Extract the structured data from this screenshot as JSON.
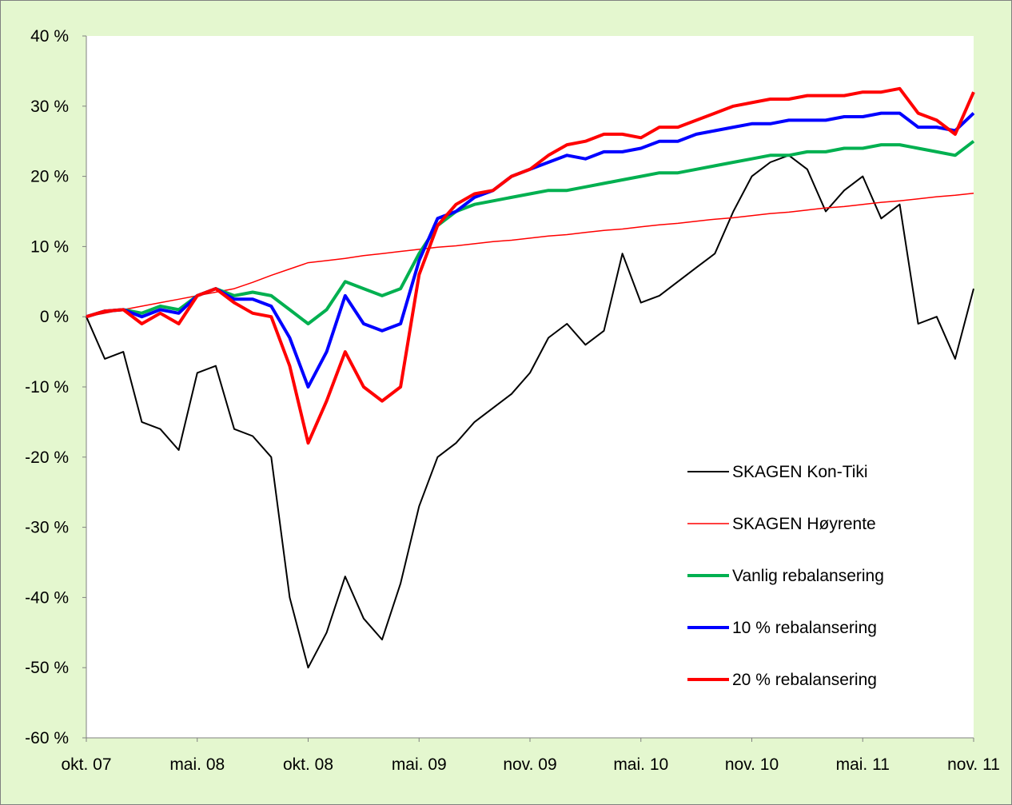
{
  "chart_data": {
    "type": "line",
    "categories": [
      "okt. 07",
      null,
      null,
      null,
      null,
      null,
      "mai. 08",
      null,
      null,
      null,
      null,
      null,
      "okt. 08",
      null,
      null,
      null,
      null,
      null,
      "mai. 09",
      null,
      null,
      null,
      null,
      null,
      "nov. 09",
      null,
      null,
      null,
      null,
      null,
      "mai. 10",
      null,
      null,
      null,
      null,
      null,
      "nov. 10",
      null,
      null,
      null,
      null,
      null,
      "mai. 11",
      null,
      null,
      null,
      null,
      null,
      "nov. 11"
    ],
    "ylim": [
      -60,
      40
    ],
    "yticks": [
      {
        "value": -60,
        "label": "-60 %"
      },
      {
        "value": -50,
        "label": "-50 %"
      },
      {
        "value": -40,
        "label": "-40 %"
      },
      {
        "value": -30,
        "label": "-30 %"
      },
      {
        "value": -20,
        "label": "-20 %"
      },
      {
        "value": -10,
        "label": "-10 %"
      },
      {
        "value": 0,
        "label": "0 %"
      },
      {
        "value": 10,
        "label": "10 %"
      },
      {
        "value": 20,
        "label": "20 %"
      },
      {
        "value": 30,
        "label": "30 %"
      },
      {
        "value": 40,
        "label": "40 %"
      }
    ],
    "grid": false,
    "legend": "lower right",
    "series": [
      {
        "name": "SKAGEN Kon-Tiki",
        "color": "#000000",
        "line_width": 2,
        "values": [
          0,
          -6,
          -5,
          -15,
          -16,
          -19,
          -8,
          -7,
          -16,
          -17,
          -20,
          -40,
          -50,
          -45,
          -37,
          -43,
          -46,
          -38,
          -27,
          -20,
          -18,
          -15,
          -13,
          -11,
          -8,
          -3,
          -1,
          -4,
          -2,
          9,
          2,
          3,
          5,
          7,
          9,
          15,
          20,
          22,
          23,
          21,
          15,
          18,
          20,
          14,
          16,
          -1,
          0,
          -6,
          4
        ]
      },
      {
        "name": "SKAGEN Høyrente",
        "color": "#ff0000",
        "line_width": 1.5,
        "values": [
          0,
          0.5,
          1,
          1.5,
          2,
          2.5,
          3,
          3.5,
          4,
          4.9,
          5.9,
          6.8,
          7.7,
          8.0,
          8.3,
          8.7,
          9.0,
          9.3,
          9.6,
          9.9,
          10.1,
          10.4,
          10.7,
          10.9,
          11.2,
          11.5,
          11.7,
          12.0,
          12.3,
          12.5,
          12.8,
          13.1,
          13.3,
          13.6,
          13.9,
          14.1,
          14.4,
          14.7,
          14.9,
          15.2,
          15.5,
          15.7,
          16.0,
          16.3,
          16.5,
          16.8,
          17.1,
          17.3,
          17.6
        ]
      },
      {
        "name": "Vanlig rebalansering",
        "color": "#00b050",
        "line_width": 4,
        "values": [
          0,
          0.8,
          1,
          0.5,
          1.5,
          1,
          3,
          4,
          3,
          3.5,
          3,
          1,
          -1,
          1,
          5,
          4,
          3,
          4,
          9,
          13,
          15,
          16,
          16.5,
          17,
          17.5,
          18,
          18,
          18.5,
          19,
          19.5,
          20,
          20.5,
          20.5,
          21,
          21.5,
          22,
          22.5,
          23,
          23,
          23.5,
          23.5,
          24,
          24,
          24.5,
          24.5,
          24,
          23.5,
          23,
          25
        ]
      },
      {
        "name": "10 % rebalansering",
        "color": "#0000ff",
        "line_width": 4,
        "values": [
          0,
          0.8,
          1,
          0,
          1,
          0.5,
          3,
          4,
          2.5,
          2.5,
          1.5,
          -3,
          -10,
          -5,
          3,
          -1,
          -2,
          -1,
          8,
          14,
          15,
          17,
          18,
          20,
          21,
          22,
          23,
          22.5,
          23.5,
          23.5,
          24,
          25,
          25,
          26,
          26.5,
          27,
          27.5,
          27.5,
          28,
          28,
          28,
          28.5,
          28.5,
          29,
          29,
          27,
          27,
          26.5,
          29
        ]
      },
      {
        "name": "20 % rebalansering",
        "color": "#ff0000",
        "line_width": 4,
        "values": [
          0,
          0.8,
          1,
          -1,
          0.5,
          -1,
          3,
          4,
          2,
          0.5,
          0,
          -7,
          -18,
          -12,
          -5,
          -10,
          -12,
          -10,
          6,
          13,
          16,
          17.5,
          18,
          20,
          21,
          23,
          24.5,
          25,
          26,
          26,
          25.5,
          27,
          27,
          28,
          29,
          30,
          30.5,
          31,
          31,
          31.5,
          31.5,
          31.5,
          32,
          32,
          32.5,
          29,
          28,
          26,
          32
        ]
      }
    ]
  }
}
